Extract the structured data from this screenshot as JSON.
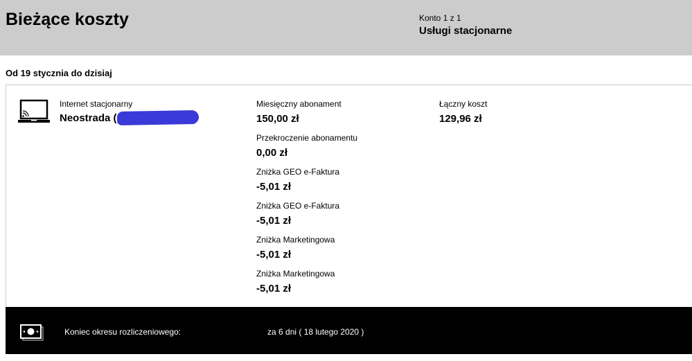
{
  "header": {
    "title": "Bieżące koszty",
    "account_label": "Konto 1 z 1",
    "account_name": "Usługi stacjonarne"
  },
  "period": "Od 19 stycznia do dzisiaj",
  "service": {
    "icon": "laptop-wifi-icon",
    "label": "Internet stacjonarny",
    "name": "Neostrada (",
    "name_end": ")"
  },
  "items": [
    {
      "label": "Miesięczny abonament",
      "value": "150,00 zł"
    },
    {
      "label": "Przekroczenie abonamentu",
      "value": "0,00 zł"
    },
    {
      "label": "Zniżka GEO e-Faktura",
      "value": "-5,01 zł"
    },
    {
      "label": "Zniżka GEO e-Faktura",
      "value": "-5,01 zł"
    },
    {
      "label": "Zniżka Marketingowa",
      "value": "-5,01 zł"
    },
    {
      "label": "Zniżka Marketingowa",
      "value": "-5,01 zł"
    }
  ],
  "total": {
    "label": "Łączny koszt",
    "value": "129,96 zł"
  },
  "footer": {
    "icon": "money-icon",
    "label": "Koniec okresu rozliczeniowego:",
    "value": "za 6 dni ( 18 lutego 2020 )"
  }
}
